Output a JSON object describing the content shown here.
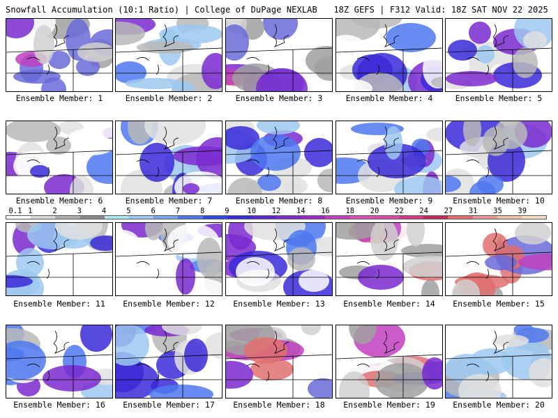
{
  "header": {
    "title_left": "Snowfall Accumulation (10:1 Ratio) | College of DuPage NEXLAB",
    "title_right": "18Z GEFS | F312 Valid: 18Z SAT NOV 22 2025"
  },
  "legend": {
    "labels": [
      "0.1",
      "1",
      "2",
      "3",
      "4",
      "5",
      "6",
      "7",
      "8",
      "9",
      "10",
      "12",
      "14",
      "16",
      "18",
      "20",
      "22",
      "24",
      "27",
      "31",
      "35",
      "39"
    ],
    "colors": [
      "#ffffff",
      "#d9d9d9",
      "#b0b0b0",
      "#8a8a8a",
      "#a8ecf0",
      "#9ec8f0",
      "#7aa8f0",
      "#4e78ee",
      "#2a4be8",
      "#3a2ad8",
      "#5a2ad0",
      "#7a2ad0",
      "#9a2ad0",
      "#c040c0",
      "#d850b8",
      "#e04aa0",
      "#d63a88",
      "#c02a60",
      "#e07070",
      "#e89898",
      "#f0c0a8",
      "#f8e0c8"
    ]
  },
  "panels": [
    {
      "label": "Ensemble Member: 1"
    },
    {
      "label": "Ensemble Member: 2"
    },
    {
      "label": "Ensemble Member: 3"
    },
    {
      "label": "Ensemble Member: 4"
    },
    {
      "label": "Ensemble Member: 5"
    },
    {
      "label": "Ensemble Member: 6"
    },
    {
      "label": "Ensemble Member: 7"
    },
    {
      "label": "Ensemble Member: 8"
    },
    {
      "label": "Ensemble Member: 9"
    },
    {
      "label": "Ensemble Member: 10"
    },
    {
      "label": "Ensemble Member: 11"
    },
    {
      "label": "Ensemble Member: 12"
    },
    {
      "label": "Ensemble Member: 13"
    },
    {
      "label": "Ensemble Member: 14"
    },
    {
      "label": "Ensemble Member: 15"
    },
    {
      "label": "Ensemble Member: 16"
    },
    {
      "label": "Ensemble Member: 17"
    },
    {
      "label": "Ensemble Member: 18"
    },
    {
      "label": "Ensemble Member: 19"
    },
    {
      "label": "Ensemble Member: 20"
    }
  ]
}
